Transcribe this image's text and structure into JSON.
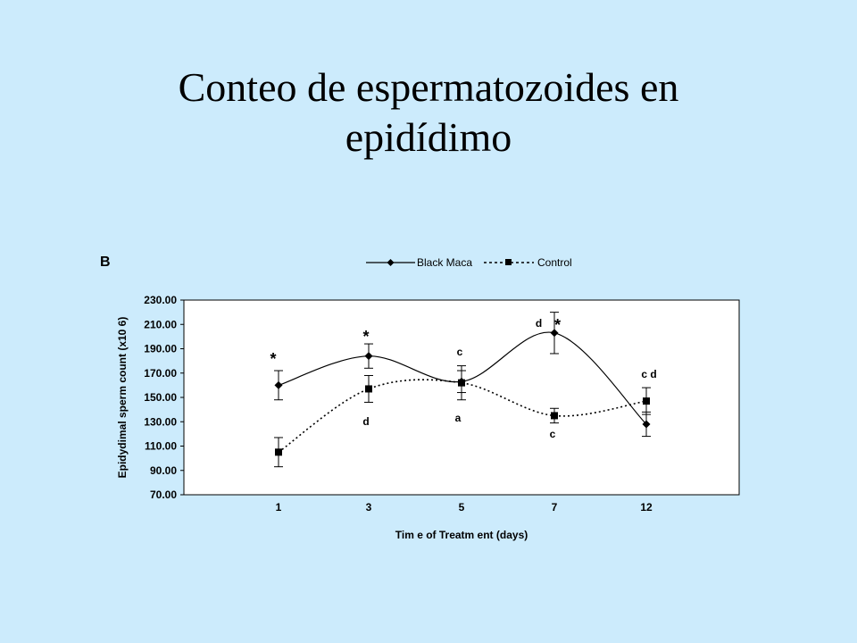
{
  "slide": {
    "title_line1": "Conteo de espermatozoides en",
    "title_line2": "epidídimo"
  },
  "chart_data": {
    "type": "line",
    "panel_label": "B",
    "xlabel": "Tim e of Treatm ent (days)",
    "ylabel": "Epidydimal sperm count (x10 6)",
    "categories": [
      "1",
      "3",
      "5",
      "7",
      "12"
    ],
    "ylim": [
      70,
      230
    ],
    "yticks": [
      "230.00",
      "210.00",
      "190.00",
      "170.00",
      "150.00",
      "130.00",
      "110.00",
      "90.00",
      "70.00"
    ],
    "legend_position": "top",
    "grid": false,
    "series": [
      {
        "name": "Black Maca",
        "marker": "diamond",
        "line": "solid",
        "values": [
          160,
          184,
          163,
          203,
          128
        ],
        "errors": [
          12,
          10,
          9,
          17,
          10
        ],
        "labels": [
          "*",
          "*",
          "c",
          "d *",
          "c d"
        ]
      },
      {
        "name": "Control",
        "marker": "square",
        "line": "dotted",
        "values": [
          105,
          157,
          162,
          135,
          147
        ],
        "errors": [
          12,
          11,
          14,
          6,
          11
        ],
        "labels": [
          "",
          "d",
          "a",
          "c",
          ""
        ]
      }
    ],
    "colors": {
      "line": "#000000",
      "plot_bg": "#FFFFFF",
      "page_bg": "#CCEBFC"
    }
  }
}
